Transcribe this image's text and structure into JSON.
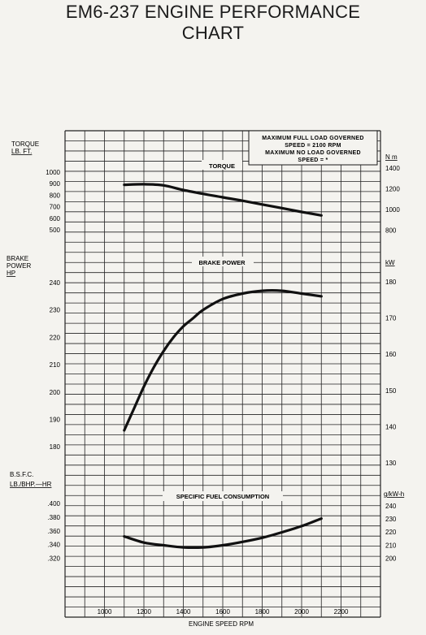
{
  "title_line1": "EM6-237 ENGINE PERFORMANCE",
  "title_line2": "CHART",
  "note": {
    "line1": "MAXIMUM FULL LOAD GOVERNED",
    "line2": "SPEED = 2100 RPM",
    "line3": "MAXIMUM NO LOAD GOVERNED",
    "line4": "SPEED = *"
  },
  "chart_data": [
    {
      "type": "line",
      "title": "TORQUE",
      "ylabel_left": [
        "TORQUE",
        "LB. FT."
      ],
      "ylabel_right": "N m",
      "xlabel": "ENGINE SPEED RPM",
      "left_ticks": [
        "1000",
        "900",
        "800",
        "700",
        "600",
        "500"
      ],
      "right_ticks": [
        "1400",
        "1200",
        "1000",
        "800"
      ],
      "x": [
        1100,
        1200,
        1300,
        1400,
        1500,
        1600,
        1700,
        1800,
        1900,
        2000,
        2100
      ],
      "series": [
        {
          "values": [
            890,
            895,
            885,
            845,
            812,
            782,
            752,
            720,
            688,
            655,
            625
          ]
        }
      ]
    },
    {
      "type": "line",
      "title": "BRAKE POWER",
      "ylabel_left": [
        "BRAKE",
        "POWER",
        "HP"
      ],
      "ylabel_right": "kW",
      "xlabel": "ENGINE SPEED RPM",
      "left_ticks": [
        "240",
        "230",
        "220",
        "210",
        "200",
        "190",
        "180"
      ],
      "right_ticks": [
        "180",
        "170",
        "160",
        "150",
        "140",
        "130"
      ],
      "ylim": [
        175,
        245
      ],
      "x": [
        1100,
        1150,
        1200,
        1250,
        1300,
        1350,
        1400,
        1450,
        1500,
        1600,
        1700,
        1800,
        1900,
        2000,
        2100
      ],
      "series": [
        {
          "values": [
            186,
            194,
            202,
            209,
            215,
            220,
            224,
            227,
            230,
            234,
            236,
            237,
            237,
            236,
            235
          ]
        }
      ]
    },
    {
      "type": "line",
      "title": "SPECIFIC FUEL CONSUMPTION",
      "ylabel_left": [
        "B.S.F.C.",
        "LB./BHP.—HR"
      ],
      "ylabel_right": "g/kW-h",
      "xlabel": "ENGINE SPEED RPM",
      "left_ticks": [
        ".400",
        ".380",
        ".360",
        ".340",
        ".320"
      ],
      "right_ticks": [
        "240",
        "230",
        "220",
        "210",
        "200"
      ],
      "x": [
        1100,
        1200,
        1300,
        1400,
        1500,
        1600,
        1700,
        1800,
        1900,
        2000,
        2100
      ],
      "series": [
        {
          "values": [
            0.352,
            0.343,
            0.339,
            0.336,
            0.336,
            0.339,
            0.344,
            0.35,
            0.358,
            0.367,
            0.378
          ]
        }
      ]
    }
  ],
  "x_ticks": [
    "1000",
    "1200",
    "1400",
    "1600",
    "1800",
    "2000",
    "2200"
  ]
}
